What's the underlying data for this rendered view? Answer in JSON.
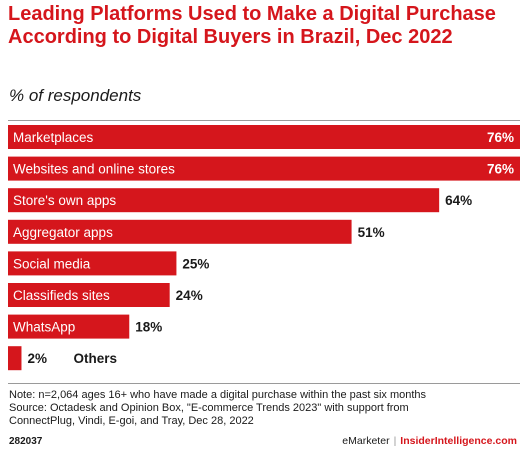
{
  "title": "Leading Platforms Used to Make a Digital Purchase According to Digital Buyers in Brazil, Dec 2022",
  "subtitle": "% of respondents",
  "chart_data": {
    "type": "bar",
    "orientation": "horizontal",
    "title": "Leading Platforms Used to Make a Digital Purchase According to Digital Buyers in Brazil, Dec 2022",
    "ylabel": "% of respondents",
    "xlim": [
      0,
      76
    ],
    "grid": false,
    "legend": "none",
    "bar_color": "#d5161c",
    "categories": [
      "Marketplaces",
      "Websites and online stores",
      "Store's own apps",
      "Aggregator apps",
      "Social media",
      "Classifieds sites",
      "WhatsApp",
      "Others"
    ],
    "values": [
      76,
      76,
      64,
      51,
      25,
      24,
      18,
      2
    ],
    "value_labels": [
      "76%",
      "76%",
      "64%",
      "51%",
      "25%",
      "24%",
      "18%",
      "2%"
    ]
  },
  "footer": {
    "note": "Note: n=2,064 ages 16+ who have made a digital purchase within the past six months",
    "source_line1": "Source: Octadesk and Opinion Box, \"E-commerce Trends 2023\" with support from",
    "source_line2": "ConnectPlug, Vindi, E-goi, and Tray, Dec 28, 2022",
    "code": "282037",
    "brand_emarketer": "eMarketer",
    "brand_separator": "|",
    "brand_insider": "InsiderIntelligence.com"
  },
  "colors": {
    "accent": "#d5161c",
    "text": "#1a1a1a",
    "rule": "#9a9a9a"
  }
}
